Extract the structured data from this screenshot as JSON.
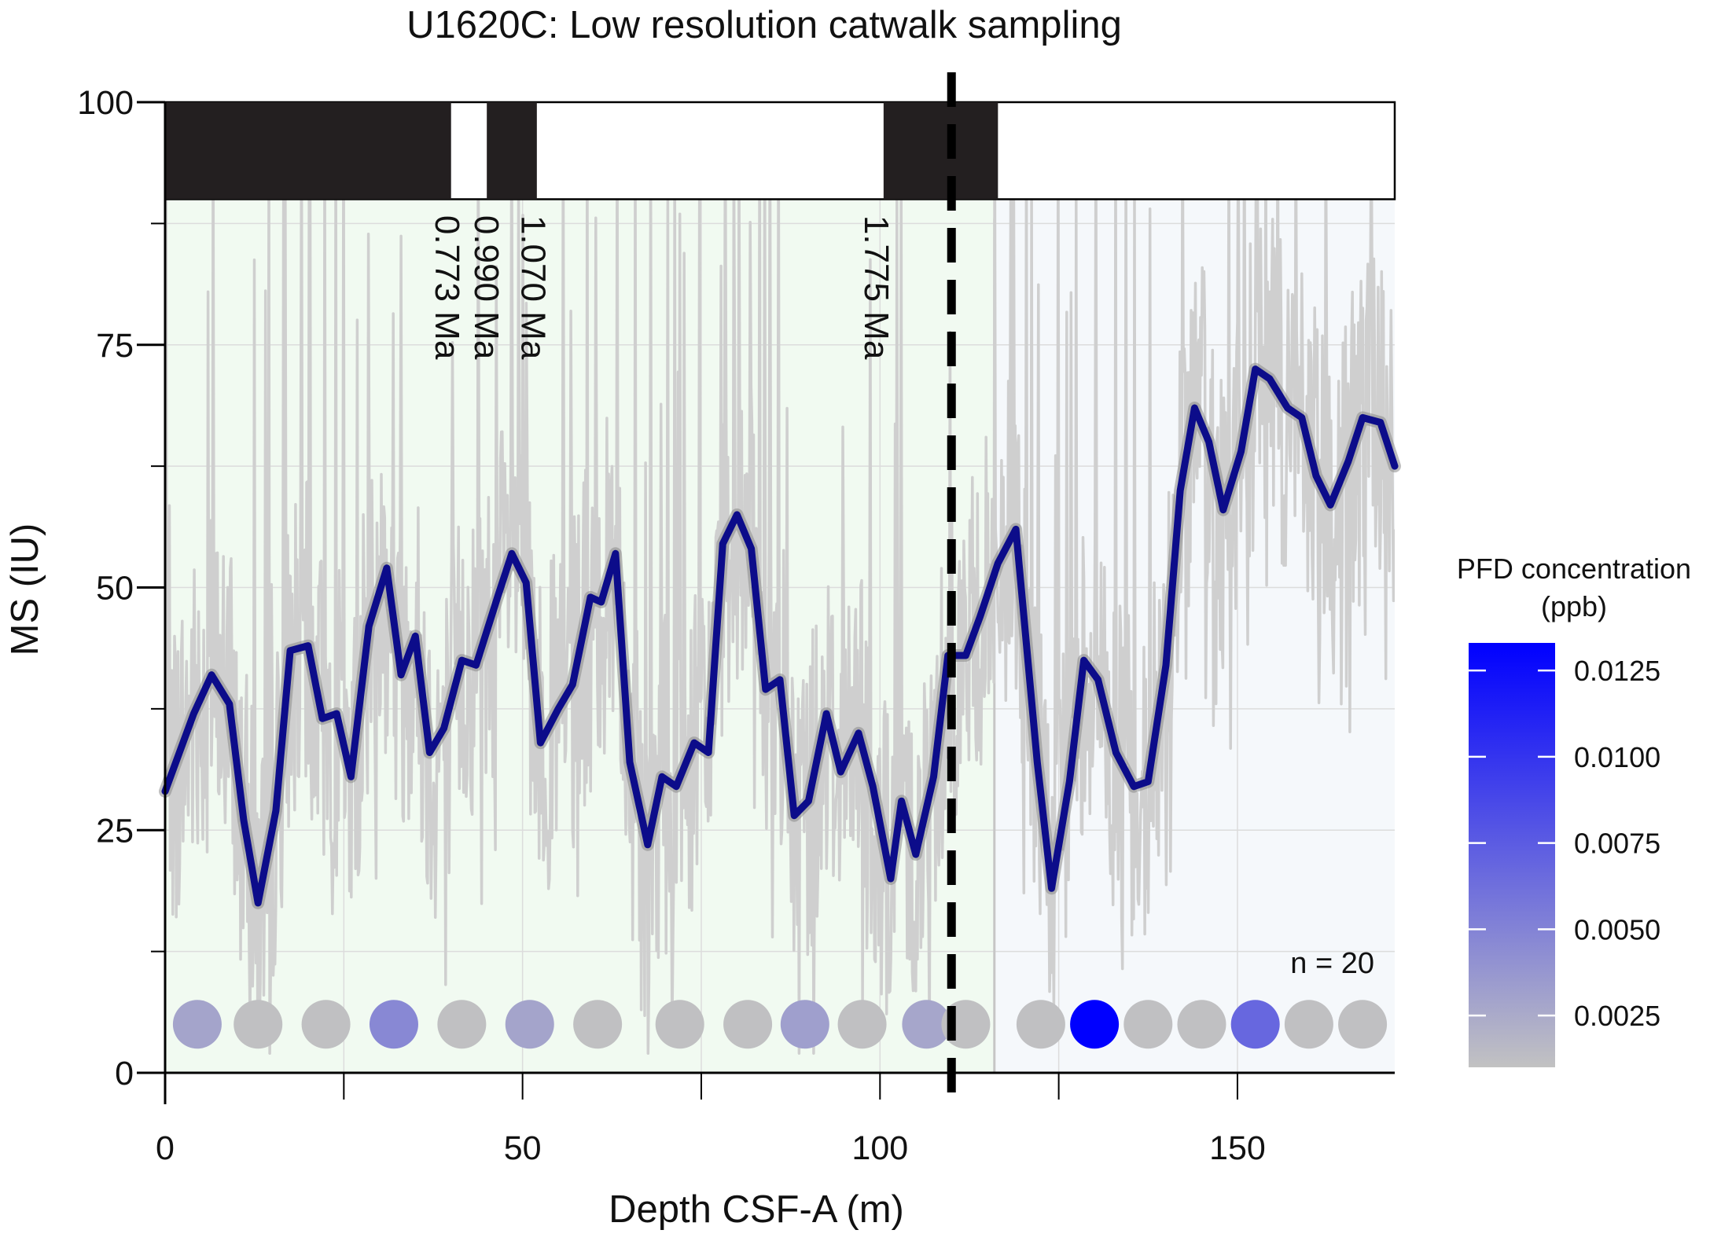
{
  "chart_data": {
    "type": "line",
    "title": "U1620C: Low resolution catwalk sampling",
    "xlabel": "Depth CSF-A (m)",
    "ylabel": "MS (IU)",
    "xlim": [
      0,
      172
    ],
    "ylim": [
      0,
      100
    ],
    "x_ticks": [
      0,
      50,
      100,
      150
    ],
    "y_ticks": [
      0,
      25,
      50,
      75,
      100
    ],
    "grid": true,
    "colors": {
      "smooth_line": "#0c0c8a",
      "raw_line": "#cfcfcf",
      "region_left": "#f1faf1",
      "region_right": "#f5f8fb",
      "pfd_low": "#c2c2c2",
      "pfd_high": "#0000ff"
    },
    "smoothed_series": {
      "name": "MS smoothed",
      "points": [
        [
          0,
          29
        ],
        [
          2,
          33
        ],
        [
          4,
          37
        ],
        [
          6.5,
          41
        ],
        [
          9,
          38
        ],
        [
          11,
          26
        ],
        [
          13,
          17.5
        ],
        [
          15.5,
          27
        ],
        [
          17.5,
          43.5
        ],
        [
          20,
          44
        ],
        [
          22,
          36.5
        ],
        [
          24,
          37
        ],
        [
          26,
          30.5
        ],
        [
          28.5,
          46
        ],
        [
          31,
          52
        ],
        [
          33,
          41
        ],
        [
          35,
          45
        ],
        [
          37,
          33
        ],
        [
          39,
          35.5
        ],
        [
          41.5,
          42.5
        ],
        [
          43.5,
          42
        ],
        [
          46.5,
          49
        ],
        [
          48.5,
          53.5
        ],
        [
          50.5,
          50.5
        ],
        [
          52.5,
          34
        ],
        [
          55,
          37.5
        ],
        [
          57,
          40
        ],
        [
          59.5,
          49
        ],
        [
          61,
          48.5
        ],
        [
          63,
          53.5
        ],
        [
          65,
          32
        ],
        [
          67.5,
          23.5
        ],
        [
          69.5,
          30.5
        ],
        [
          71.5,
          29.5
        ],
        [
          74,
          34
        ],
        [
          76,
          33
        ],
        [
          78,
          54.5
        ],
        [
          80,
          57.5
        ],
        [
          82,
          54
        ],
        [
          84,
          39.5
        ],
        [
          86,
          40.5
        ],
        [
          88,
          26.5
        ],
        [
          90,
          28
        ],
        [
          92.5,
          37
        ],
        [
          94.5,
          31
        ],
        [
          97,
          35
        ],
        [
          99,
          29.5
        ],
        [
          101.5,
          20
        ],
        [
          103,
          28
        ],
        [
          105,
          22.5
        ],
        [
          107.5,
          30.5
        ],
        [
          109.5,
          43
        ],
        [
          112,
          43
        ],
        [
          114,
          47
        ],
        [
          116.5,
          52.5
        ],
        [
          119,
          56
        ],
        [
          122,
          32
        ],
        [
          124,
          19
        ],
        [
          126.5,
          30
        ],
        [
          128.5,
          42.5
        ],
        [
          130.5,
          40.5
        ],
        [
          133,
          33
        ],
        [
          135.5,
          29.5
        ],
        [
          137.5,
          30
        ],
        [
          140,
          42
        ],
        [
          142,
          60
        ],
        [
          144,
          68.5
        ],
        [
          146,
          65
        ],
        [
          148,
          58
        ],
        [
          150.5,
          64
        ],
        [
          152.5,
          72.5
        ],
        [
          154.5,
          71.5
        ],
        [
          157,
          68.5
        ],
        [
          159,
          67.5
        ],
        [
          161,
          61.5
        ],
        [
          163,
          58.5
        ],
        [
          165.5,
          63
        ],
        [
          167.5,
          67.5
        ],
        [
          170,
          67
        ],
        [
          172,
          62.5
        ]
      ]
    },
    "raw_series": {
      "name": "MS raw measurements"
    },
    "regions": [
      {
        "name": "left interval",
        "x": [
          0,
          116
        ]
      },
      {
        "name": "right interval",
        "x": [
          116,
          172
        ]
      }
    ],
    "vertical_marker": {
      "x": 110,
      "style": "dashed"
    },
    "polarity_bar": {
      "y_range": [
        90,
        100
      ],
      "normal_intervals": [
        [
          0,
          40
        ],
        [
          45,
          52
        ],
        [
          100.5,
          116.5
        ]
      ]
    },
    "chron_labels": [
      {
        "label": "0.773 Ma",
        "x": 39.5
      },
      {
        "label": "0.990 Ma",
        "x": 45
      },
      {
        "label": "1.070 Ma",
        "x": 51.5
      },
      {
        "label": "1.775 Ma",
        "x": 99.5
      }
    ],
    "pfd_samples": {
      "n_label": "n = 20",
      "y": 5,
      "points": [
        {
          "x": 4.5,
          "value": 0.0029
        },
        {
          "x": 13,
          "value": 0.0011
        },
        {
          "x": 22.5,
          "value": 0.0011
        },
        {
          "x": 32,
          "value": 0.0047
        },
        {
          "x": 41.5,
          "value": 0.0011
        },
        {
          "x": 51,
          "value": 0.0029
        },
        {
          "x": 60.5,
          "value": 0.0011
        },
        {
          "x": 72,
          "value": 0.0011
        },
        {
          "x": 81.5,
          "value": 0.0011
        },
        {
          "x": 89.5,
          "value": 0.0032
        },
        {
          "x": 97.5,
          "value": 0.0011
        },
        {
          "x": 106.5,
          "value": 0.0028
        },
        {
          "x": 112,
          "value": 0.0011
        },
        {
          "x": 122.5,
          "value": 0.0011
        },
        {
          "x": 130,
          "value": 0.0133
        },
        {
          "x": 137.5,
          "value": 0.0011
        },
        {
          "x": 145,
          "value": 0.0011
        },
        {
          "x": 152.5,
          "value": 0.0068
        },
        {
          "x": 160,
          "value": 0.0011
        },
        {
          "x": 167.5,
          "value": 0.0011
        }
      ]
    },
    "colorbar": {
      "title_line1": "PFD concentration",
      "title_line2": "(ppb)",
      "range": [
        0.001,
        0.0133
      ],
      "ticks": [
        {
          "value": 0.0025,
          "label": "0.0025"
        },
        {
          "value": 0.005,
          "label": "0.0050"
        },
        {
          "value": 0.0075,
          "label": "0.0075"
        },
        {
          "value": 0.01,
          "label": "0.0100"
        },
        {
          "value": 0.0125,
          "label": "0.0125"
        }
      ]
    }
  }
}
